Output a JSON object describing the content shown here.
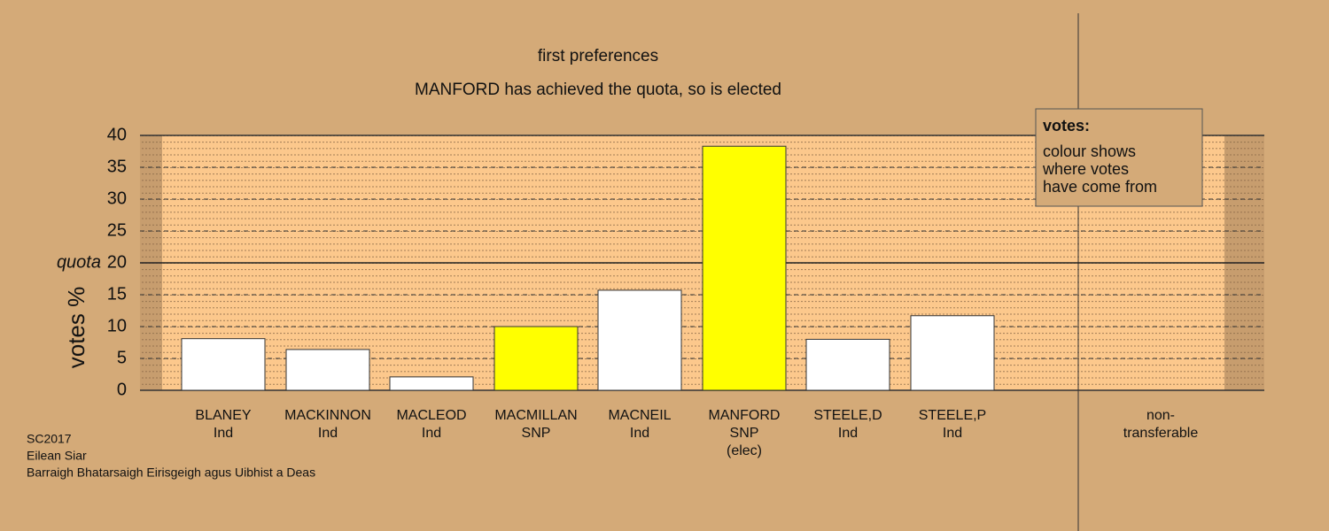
{
  "chart_data": {
    "type": "bar",
    "title": "first preferences",
    "subtitle": "MANFORD has achieved the quota, so is elected",
    "y_label": "votes %",
    "quota_label": "quota",
    "quota": 20,
    "categories": [
      [
        "BLANEY",
        "Ind"
      ],
      [
        "MACKINNON",
        "Ind"
      ],
      [
        "MACLEOD",
        "Ind"
      ],
      [
        "MACMILLAN",
        "SNP"
      ],
      [
        "MACNEIL",
        "Ind"
      ],
      [
        "MANFORD",
        "SNP",
        "(elec)"
      ],
      [
        "STEELE,D",
        "Ind"
      ],
      [
        "STEELE,P",
        "Ind"
      ],
      [
        "non-",
        "transferable"
      ]
    ],
    "values": [
      8.1,
      6.4,
      2.1,
      10,
      15.7,
      38.3,
      8.0,
      11.7,
      0
    ],
    "colors": [
      "#ffffff",
      "#ffffff",
      "#ffffff",
      "#ffff00",
      "#ffffff",
      "#ffff00",
      "#ffffff",
      "#ffffff",
      "#ffffff"
    ],
    "ylim": [
      0,
      40
    ],
    "yticks": [
      0,
      5,
      10,
      15,
      20,
      25,
      30,
      35,
      40
    ],
    "grid": true,
    "legend": {
      "title": "votes:",
      "lines": [
        "colour shows",
        "where votes",
        "have come from"
      ]
    },
    "footer": [
      "SC2017",
      "Eilean Siar",
      "Barraigh Bhatarsaigh Eirisgeigh agus Uibhist a Deas"
    ]
  }
}
